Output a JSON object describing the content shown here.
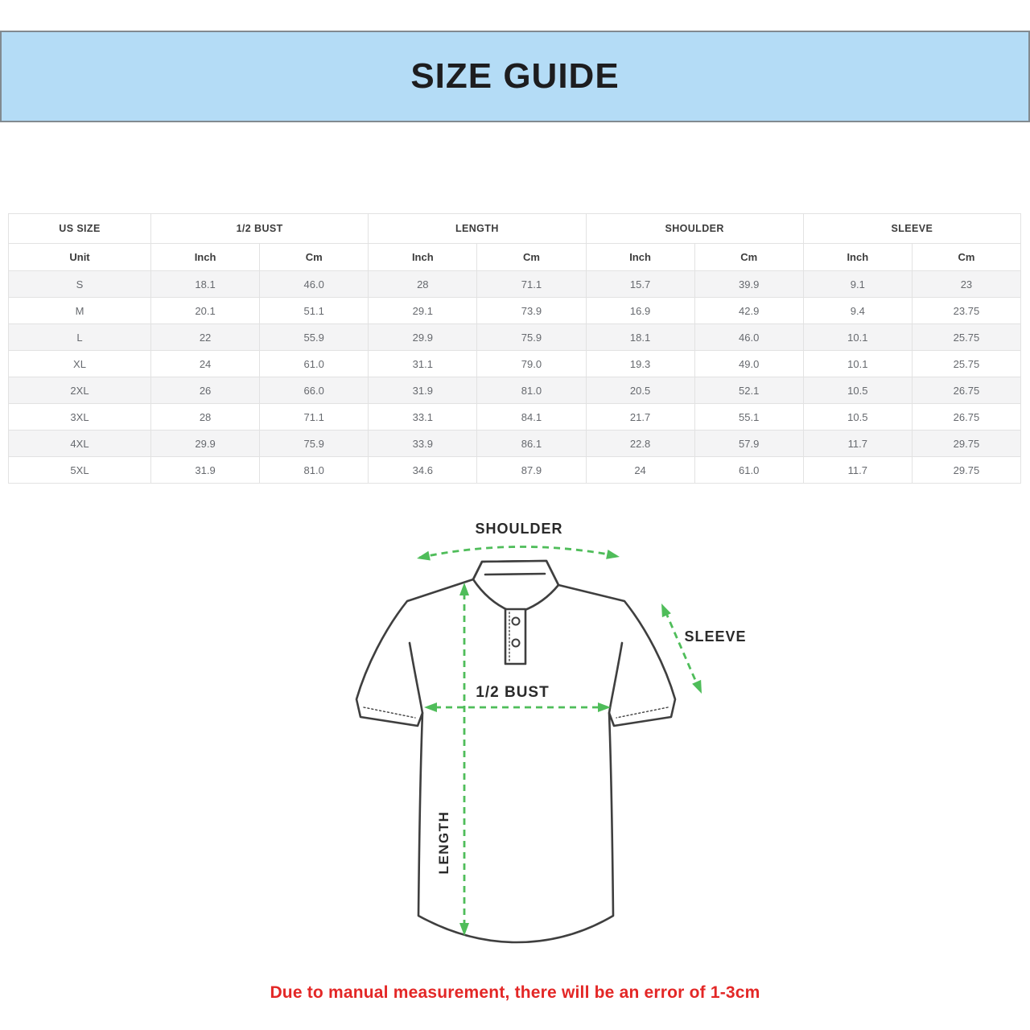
{
  "banner": {
    "title": "SIZE GUIDE"
  },
  "size_table": {
    "column_groups": [
      {
        "label": "US SIZE",
        "span": 1
      },
      {
        "label": "1/2 BUST",
        "span": 2
      },
      {
        "label": "LENGTH",
        "span": 2
      },
      {
        "label": "SHOULDER",
        "span": 2
      },
      {
        "label": "SLEEVE",
        "span": 2
      }
    ],
    "unit_header": [
      "Unit",
      "Inch",
      "Cm",
      "Inch",
      "Cm",
      "Inch",
      "Cm",
      "Inch",
      "Cm"
    ],
    "rows": [
      {
        "size": "S",
        "values": [
          "18.1",
          "46.0",
          "28",
          "71.1",
          "15.7",
          "39.9",
          "9.1",
          "23"
        ]
      },
      {
        "size": "M",
        "values": [
          "20.1",
          "51.1",
          "29.1",
          "73.9",
          "16.9",
          "42.9",
          "9.4",
          "23.75"
        ]
      },
      {
        "size": "L",
        "values": [
          "22",
          "55.9",
          "29.9",
          "75.9",
          "18.1",
          "46.0",
          "10.1",
          "25.75"
        ]
      },
      {
        "size": "XL",
        "values": [
          "24",
          "61.0",
          "31.1",
          "79.0",
          "19.3",
          "49.0",
          "10.1",
          "25.75"
        ]
      },
      {
        "size": "2XL",
        "values": [
          "26",
          "66.0",
          "31.9",
          "81.0",
          "20.5",
          "52.1",
          "10.5",
          "26.75"
        ]
      },
      {
        "size": "3XL",
        "values": [
          "28",
          "71.1",
          "33.1",
          "84.1",
          "21.7",
          "55.1",
          "10.5",
          "26.75"
        ]
      },
      {
        "size": "4XL",
        "values": [
          "29.9",
          "75.9",
          "33.9",
          "86.1",
          "22.8",
          "57.9",
          "11.7",
          "29.75"
        ]
      },
      {
        "size": "5XL",
        "values": [
          "31.9",
          "81.0",
          "34.6",
          "87.9",
          "24",
          "61.0",
          "11.7",
          "29.75"
        ]
      }
    ]
  },
  "diagram": {
    "shoulder_label": "SHOULDER",
    "sleeve_label": "SLEEVE",
    "half_bust_label": "1/2 BUST",
    "length_label": "LENGTH"
  },
  "footer": {
    "note": "Due to manual measurement, there will be an error of 1-3cm"
  },
  "colors": {
    "banner_bg": "#b4dcf6",
    "banner_border": "#828a90",
    "measure_arrow_green": "#4fbd5a",
    "note_red": "#e32726",
    "row_stripe": "#f4f4f5",
    "table_border": "#e2e2e2"
  }
}
